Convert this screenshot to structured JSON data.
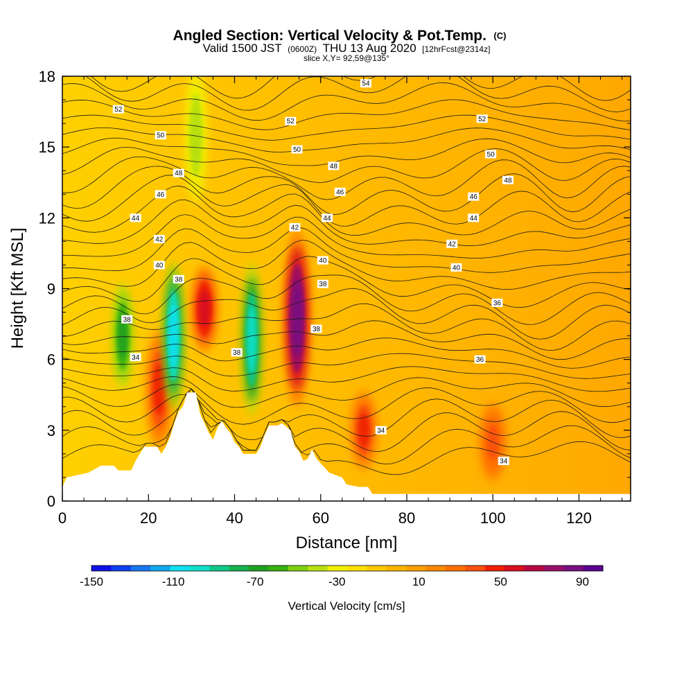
{
  "header": {
    "title": "Angled Section: Vertical Velocity & Pot.Temp.",
    "title_mark": "(C)",
    "valid_prefix": "Valid 1500 JST",
    "valid_utc": "(0600Z)",
    "valid_date": "THU 13 Aug 2020",
    "forecast": "[12hrFcst@2314z]",
    "slice": "slice X,Y= 92,59@135°"
  },
  "chart_data": {
    "type": "heatmap",
    "xlabel": "Distance [nm]",
    "ylabel": "Height [Kft MSL]",
    "xlim": [
      0,
      132
    ],
    "ylim": [
      0,
      18
    ],
    "x_ticks": [
      {
        "value": 0,
        "label": "0"
      },
      {
        "value": 20,
        "label": "20"
      },
      {
        "value": 40,
        "label": "40"
      },
      {
        "value": 60,
        "label": "60"
      },
      {
        "value": 80,
        "label": "80"
      },
      {
        "value": 100,
        "label": "100"
      },
      {
        "value": 120,
        "label": "120"
      }
    ],
    "y_ticks": [
      {
        "value": 0,
        "label": "0"
      },
      {
        "value": 3,
        "label": "3"
      },
      {
        "value": 6,
        "label": "6"
      },
      {
        "value": 9,
        "label": "9"
      },
      {
        "value": 12,
        "label": "12"
      },
      {
        "value": 15,
        "label": "15"
      },
      {
        "value": 18,
        "label": "18"
      }
    ],
    "colorbar": {
      "title": "Vertical Velocity [cm/s]",
      "min": -150,
      "max": 100,
      "labels": [
        {
          "value": -150,
          "label": "-150"
        },
        {
          "value": -110,
          "label": "-110"
        },
        {
          "value": -70,
          "label": "-70"
        },
        {
          "value": -30,
          "label": "-30"
        },
        {
          "value": 10,
          "label": "10"
        },
        {
          "value": 50,
          "label": "50"
        },
        {
          "value": 90,
          "label": "90"
        }
      ],
      "colors": [
        "#1010e8",
        "#1040f0",
        "#1878f0",
        "#10a8f0",
        "#10e0f0",
        "#10e0c8",
        "#10c888",
        "#18b050",
        "#20a020",
        "#38b010",
        "#80d010",
        "#b8e010",
        "#f0f000",
        "#ffe000",
        "#ffc800",
        "#ffb400",
        "#ffa000",
        "#ff8800",
        "#ff7000",
        "#f85010",
        "#f02000",
        "#d81020",
        "#b80840",
        "#981068",
        "#781080",
        "#580090"
      ]
    },
    "terrain": [
      [
        0,
        0.6
      ],
      [
        1,
        1
      ],
      [
        6,
        1.2
      ],
      [
        9,
        1.5
      ],
      [
        12,
        1.5
      ],
      [
        13,
        1.3
      ],
      [
        16,
        1.3
      ],
      [
        17,
        1.7
      ],
      [
        18,
        2
      ],
      [
        19,
        2.3
      ],
      [
        22,
        2.3
      ],
      [
        23,
        2
      ],
      [
        24,
        2.3
      ],
      [
        25,
        2.7
      ],
      [
        26,
        3.3
      ],
      [
        27,
        3.8
      ],
      [
        28,
        4
      ],
      [
        29,
        4.6
      ],
      [
        31,
        4.6
      ],
      [
        32,
        3.7
      ],
      [
        33,
        3.3
      ],
      [
        34,
        2.9
      ],
      [
        35,
        2.6
      ],
      [
        36,
        3.1
      ],
      [
        37,
        3.4
      ],
      [
        38,
        3.1
      ],
      [
        39,
        2.9
      ],
      [
        40,
        2.5
      ],
      [
        41,
        2.3
      ],
      [
        42,
        2
      ],
      [
        45,
        2
      ],
      [
        46,
        2.3
      ],
      [
        47,
        2.8
      ],
      [
        48,
        3.2
      ],
      [
        50,
        3.2
      ],
      [
        51,
        3.3
      ],
      [
        53,
        3
      ],
      [
        54,
        2.3
      ],
      [
        55,
        2.1
      ],
      [
        56,
        1.7
      ],
      [
        57,
        1.8
      ],
      [
        58,
        2.2
      ],
      [
        59,
        1.8
      ],
      [
        61,
        1.4
      ],
      [
        62,
        1.2
      ],
      [
        65,
        1
      ],
      [
        66,
        0.7
      ],
      [
        69,
        0.6
      ],
      [
        71,
        0.6
      ],
      [
        72,
        0.3
      ],
      [
        132,
        0.3
      ]
    ],
    "vertical_velocity_features": [
      {
        "kind": "updraft",
        "x": 22.5,
        "z_bottom": 2.5,
        "z_top": 7.0,
        "peak_cm_s": 50
      },
      {
        "kind": "downdraft",
        "x": 25.8,
        "z_bottom": 4.3,
        "z_top": 9.7,
        "peak_cm_s": -110
      },
      {
        "kind": "updraft",
        "x": 33.0,
        "z_bottom": 6.5,
        "z_top": 9.8,
        "peak_cm_s": 55
      },
      {
        "kind": "downdraft",
        "x": 44.0,
        "z_bottom": 4.0,
        "z_top": 9.7,
        "peak_cm_s": -100
      },
      {
        "kind": "updraft",
        "x": 54.5,
        "z_bottom": 4.5,
        "z_top": 11.0,
        "peak_cm_s": 90
      },
      {
        "kind": "downdraft",
        "x": 14.0,
        "z_bottom": 5.0,
        "z_top": 9.0,
        "peak_cm_s": -70
      },
      {
        "kind": "updraft",
        "x": 70.0,
        "z_bottom": 1.5,
        "z_top": 4.5,
        "peak_cm_s": 45
      },
      {
        "kind": "updraft",
        "x": 100.0,
        "z_bottom": 1.0,
        "z_top": 4.0,
        "peak_cm_s": 35
      },
      {
        "kind": "downdraft",
        "x": 31.0,
        "z_bottom": 13.0,
        "z_top": 18.0,
        "peak_cm_s": -40
      }
    ],
    "isentrope_labels": [
      {
        "text": "54",
        "x": 70.5,
        "y": 17.7
      },
      {
        "text": "52",
        "x": 13.0,
        "y": 16.6
      },
      {
        "text": "52",
        "x": 53.0,
        "y": 16.1
      },
      {
        "text": "52",
        "x": 97.5,
        "y": 16.2
      },
      {
        "text": "50",
        "x": 22.8,
        "y": 15.5
      },
      {
        "text": "50",
        "x": 54.5,
        "y": 14.9
      },
      {
        "text": "50",
        "x": 99.5,
        "y": 14.7
      },
      {
        "text": "48",
        "x": 27.0,
        "y": 13.9
      },
      {
        "text": "48",
        "x": 63.0,
        "y": 14.2
      },
      {
        "text": "48",
        "x": 103.5,
        "y": 13.6
      },
      {
        "text": "46",
        "x": 22.8,
        "y": 13.0
      },
      {
        "text": "46",
        "x": 64.5,
        "y": 13.1
      },
      {
        "text": "46",
        "x": 95.5,
        "y": 12.9
      },
      {
        "text": "44",
        "x": 17.0,
        "y": 12.0
      },
      {
        "text": "44",
        "x": 61.5,
        "y": 12.0
      },
      {
        "text": "44",
        "x": 95.5,
        "y": 12.0
      },
      {
        "text": "42",
        "x": 22.5,
        "y": 11.1
      },
      {
        "text": "42",
        "x": 54.0,
        "y": 11.6
      },
      {
        "text": "42",
        "x": 90.5,
        "y": 10.9
      },
      {
        "text": "40",
        "x": 22.5,
        "y": 10.0
      },
      {
        "text": "40",
        "x": 60.5,
        "y": 10.2
      },
      {
        "text": "40",
        "x": 91.5,
        "y": 9.9
      },
      {
        "text": "38",
        "x": 27.0,
        "y": 9.4
      },
      {
        "text": "38",
        "x": 60.5,
        "y": 9.2
      },
      {
        "text": "38",
        "x": 15.0,
        "y": 7.7
      },
      {
        "text": "38",
        "x": 59.0,
        "y": 7.3
      },
      {
        "text": "38",
        "x": 40.5,
        "y": 6.3
      },
      {
        "text": "36",
        "x": 101.0,
        "y": 8.4
      },
      {
        "text": "36",
        "x": 97.0,
        "y": 6.0
      },
      {
        "text": "34",
        "x": 17.0,
        "y": 6.1
      },
      {
        "text": "34",
        "x": 74.0,
        "y": 3.0
      },
      {
        "text": "34",
        "x": 102.5,
        "y": 1.7
      }
    ]
  }
}
